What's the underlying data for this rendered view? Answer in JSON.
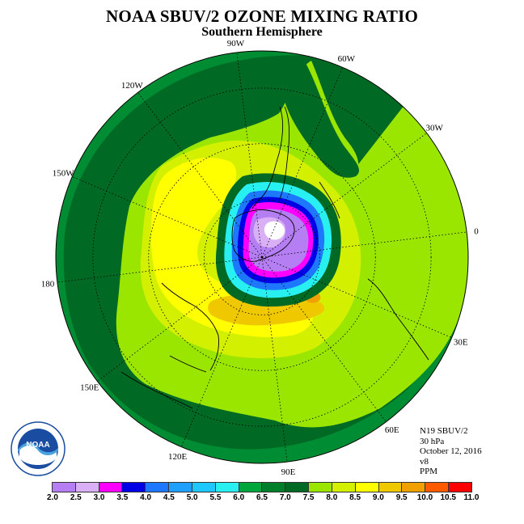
{
  "header": {
    "title": "NOAA SBUV/2 OZONE MIXING RATIO",
    "subtitle": "Southern Hemisphere"
  },
  "map": {
    "projection": "south-polar-stereographic",
    "longitude_labels": [
      "90W",
      "60W",
      "30W",
      "0",
      "30E",
      "60E",
      "90E",
      "120E",
      "150E",
      "180",
      "150W",
      "120W"
    ]
  },
  "info": {
    "satellite": "N19 SBUV/2",
    "level": "30 hPa",
    "date": "October 12, 2016",
    "version": "v8",
    "units": "PPM"
  },
  "logo": {
    "text": "NOAA",
    "ring_text": "NATIONAL OCEANIC AND ATMOSPHERIC ADMINISTRATION · U.S. DEPARTMENT OF COMMERCE",
    "icon": "noaa-logo"
  },
  "colorbar": {
    "ticks": [
      "2.0",
      "2.5",
      "3.0",
      "3.5",
      "4.0",
      "4.5",
      "5.0",
      "5.5",
      "6.0",
      "6.5",
      "7.0",
      "7.5",
      "8.0",
      "8.5",
      "9.0",
      "9.5",
      "10.0",
      "10.5",
      "11.0"
    ],
    "colors": [
      "#b57ef2",
      "#d9b0f5",
      "#ff00ff",
      "#0000e6",
      "#1e78ff",
      "#1fa0ff",
      "#1ec8ff",
      "#28f0f0",
      "#00a53c",
      "#007f2a",
      "#006a24",
      "#9be600",
      "#d2f000",
      "#ffff00",
      "#f0c800",
      "#f0a000",
      "#ff5a00",
      "#ff0000",
      "#8b4513"
    ]
  },
  "field_colors": {
    "outer_ring": "#008c32",
    "dark_band": "#006a24",
    "light_green": "#9be600",
    "yellow_green": "#d2f000",
    "yellow": "#ffff00",
    "gold": "#f0c800",
    "orange": "#f0a000",
    "vortex_edge": "#006a24",
    "cyan": "#28f0f0",
    "blue": "#1e78ff",
    "dark_blue": "#0000e6",
    "magenta": "#ff00ff",
    "purple": "#b57ef2",
    "light_purple": "#d9b0f5",
    "white": "#ffffff"
  }
}
